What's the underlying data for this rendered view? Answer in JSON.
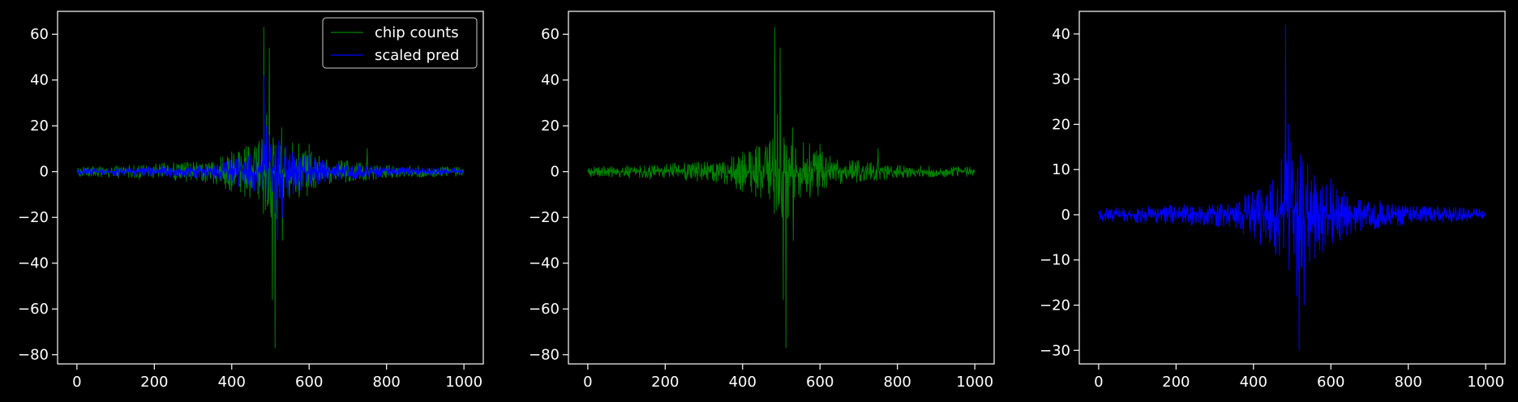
{
  "figure": {
    "background": "#000000",
    "foreground": "#ffffff"
  },
  "chart_data": [
    {
      "type": "line",
      "title": "",
      "xlabel": "",
      "ylabel": "",
      "xlim": [
        -50,
        1050
      ],
      "ylim": [
        -84,
        70
      ],
      "xticks": [
        0,
        200,
        400,
        600,
        800,
        1000
      ],
      "yticks": [
        -80,
        -60,
        -40,
        -20,
        0,
        20,
        40,
        60
      ],
      "grid": false,
      "legend": {
        "position": "top-right",
        "entries": [
          "chip counts",
          "scaled pred"
        ]
      },
      "series": [
        {
          "name": "chip counts",
          "color": "#008000",
          "points": 1000,
          "baseline": 0,
          "noise_amplitude": [
            [
              0,
              1.5
            ],
            [
              350,
              3.5
            ],
            [
              450,
              9
            ],
            [
              480,
              15
            ],
            [
              520,
              15
            ],
            [
              560,
              10
            ],
            [
              650,
              4
            ],
            [
              800,
              2
            ],
            [
              1000,
              1.5
            ]
          ],
          "spikes": [
            [
              483,
              63
            ],
            [
              490,
              25
            ],
            [
              497,
              54
            ],
            [
              505,
              -56
            ],
            [
              512,
              -77
            ],
            [
              531,
              -30
            ],
            [
              750,
              10
            ],
            [
              420,
              8
            ],
            [
              600,
              12
            ]
          ]
        },
        {
          "name": "scaled pred",
          "color": "#0000ff",
          "points": 1000,
          "baseline": 0,
          "noise_amplitude": [
            [
              0,
              1
            ],
            [
              350,
              2
            ],
            [
              450,
              6
            ],
            [
              480,
              10
            ],
            [
              520,
              10
            ],
            [
              560,
              7
            ],
            [
              650,
              3
            ],
            [
              800,
              1.5
            ],
            [
              1000,
              1
            ]
          ],
          "spikes": [
            [
              483,
              42
            ],
            [
              490,
              20
            ],
            [
              497,
              16
            ],
            [
              512,
              -18
            ],
            [
              518,
              -30
            ],
            [
              531,
              -20
            ],
            [
              600,
              8
            ]
          ]
        }
      ]
    },
    {
      "type": "line",
      "title": "",
      "xlabel": "",
      "ylabel": "",
      "xlim": [
        -50,
        1050
      ],
      "ylim": [
        -84,
        70
      ],
      "xticks": [
        0,
        200,
        400,
        600,
        800,
        1000
      ],
      "yticks": [
        -80,
        -60,
        -40,
        -20,
        0,
        20,
        40,
        60
      ],
      "grid": false,
      "series": [
        {
          "color": "#008000",
          "points": 1000,
          "baseline": 0,
          "noise_amplitude": [
            [
              0,
              1.5
            ],
            [
              350,
              3.5
            ],
            [
              450,
              9
            ],
            [
              480,
              15
            ],
            [
              520,
              15
            ],
            [
              560,
              10
            ],
            [
              650,
              4
            ],
            [
              800,
              2
            ],
            [
              1000,
              1.5
            ]
          ],
          "spikes": [
            [
              483,
              63
            ],
            [
              490,
              25
            ],
            [
              497,
              54
            ],
            [
              505,
              -56
            ],
            [
              512,
              -77
            ],
            [
              531,
              -30
            ],
            [
              750,
              10
            ],
            [
              420,
              8
            ],
            [
              600,
              12
            ]
          ]
        }
      ]
    },
    {
      "type": "line",
      "title": "",
      "xlabel": "",
      "ylabel": "",
      "xlim": [
        -50,
        1050
      ],
      "ylim": [
        -33,
        45
      ],
      "xticks": [
        0,
        200,
        400,
        600,
        800,
        1000
      ],
      "yticks": [
        -30,
        -20,
        -10,
        0,
        10,
        20,
        30,
        40
      ],
      "grid": false,
      "series": [
        {
          "color": "#0000ff",
          "points": 1000,
          "baseline": 0,
          "noise_amplitude": [
            [
              0,
              1
            ],
            [
              350,
              2
            ],
            [
              450,
              6
            ],
            [
              480,
              10
            ],
            [
              520,
              10
            ],
            [
              560,
              7
            ],
            [
              650,
              3
            ],
            [
              800,
              1.5
            ],
            [
              1000,
              1
            ]
          ],
          "spikes": [
            [
              483,
              42
            ],
            [
              490,
              20
            ],
            [
              497,
              16
            ],
            [
              512,
              -18
            ],
            [
              518,
              -30
            ],
            [
              531,
              -20
            ],
            [
              600,
              8
            ]
          ]
        }
      ]
    }
  ]
}
